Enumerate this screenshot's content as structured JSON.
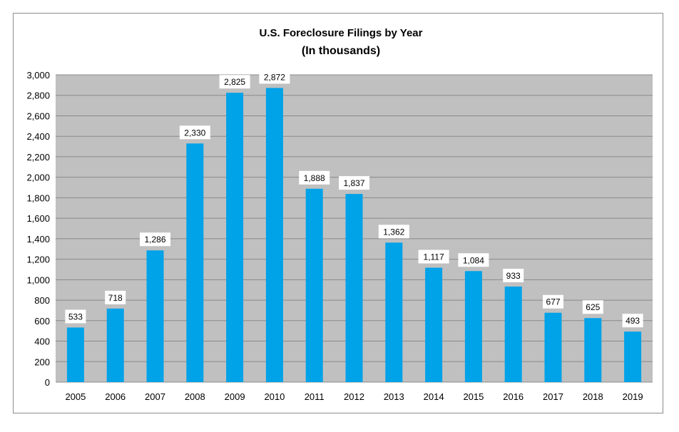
{
  "chart_data": {
    "type": "bar",
    "title": "U.S. Foreclosure Filings by Year",
    "subtitle": "(In thousands)",
    "categories": [
      "2005",
      "2006",
      "2007",
      "2008",
      "2009",
      "2010",
      "2011",
      "2012",
      "2013",
      "2014",
      "2015",
      "2016",
      "2017",
      "2018",
      "2019"
    ],
    "values": [
      533,
      718,
      1286,
      2330,
      2825,
      2872,
      1888,
      1837,
      1362,
      1117,
      1084,
      933,
      677,
      625,
      493
    ],
    "data_labels": [
      "533",
      "718",
      "1,286",
      "2,330",
      "2,825",
      "2,872",
      "1,888",
      "1,837",
      "1,362",
      "1,117",
      "1,084",
      "933",
      "677",
      "625",
      "493"
    ],
    "ylim": [
      0,
      3000
    ],
    "yticks": [
      0,
      200,
      400,
      600,
      800,
      1000,
      1200,
      1400,
      1600,
      1800,
      2000,
      2200,
      2400,
      2600,
      2800,
      3000
    ],
    "ytick_labels": [
      "0",
      "200",
      "400",
      "600",
      "800",
      "1,000",
      "1,200",
      "1,400",
      "1,600",
      "1,800",
      "2,000",
      "2,200",
      "2,400",
      "2,600",
      "2,800",
      "3,000"
    ],
    "xlabel": "",
    "ylabel": "",
    "grid": true,
    "colors": {
      "bar": "#00a2e8",
      "plot_background": "#c0c0c0",
      "gridline": "#8a8a8a",
      "label_box": "#ffffff"
    }
  }
}
